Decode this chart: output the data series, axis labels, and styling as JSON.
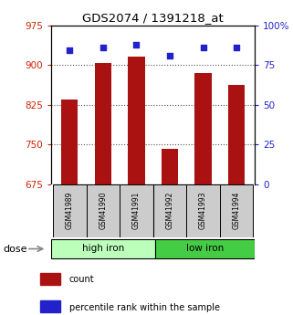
{
  "title": "GDS2074 / 1391218_at",
  "samples": [
    "GSM41989",
    "GSM41990",
    "GSM41991",
    "GSM41992",
    "GSM41993",
    "GSM41994"
  ],
  "bar_values": [
    835,
    903,
    916,
    742,
    885,
    862
  ],
  "percentile_values": [
    84,
    86,
    88,
    81,
    86,
    86
  ],
  "bar_color": "#aa1111",
  "dot_color": "#2222cc",
  "ylim_left": [
    675,
    975
  ],
  "ylim_right": [
    0,
    100
  ],
  "yticks_left": [
    675,
    750,
    825,
    900,
    975
  ],
  "yticks_right": [
    0,
    25,
    50,
    75,
    100
  ],
  "ytick_right_labels": [
    "0",
    "25",
    "50",
    "75",
    "100%"
  ],
  "groups": [
    {
      "label": "high iron",
      "color": "#bbffbb"
    },
    {
      "label": "low iron",
      "color": "#44cc44"
    }
  ],
  "dose_label": "dose",
  "legend_count_label": "count",
  "legend_pct_label": "percentile rank within the sample",
  "left_tick_color": "#cc2200",
  "right_tick_color": "#2222cc",
  "grid_color": "#555555",
  "grid_ticks": [
    750,
    825,
    900
  ],
  "bar_width": 0.5,
  "bg_color": "#ffffff",
  "sample_box_color": "#cccccc"
}
